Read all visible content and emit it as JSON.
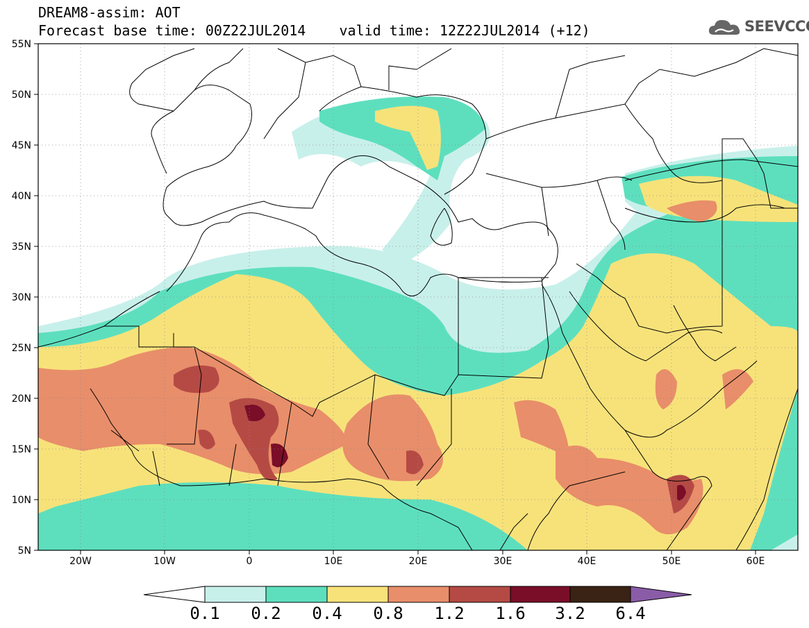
{
  "title": {
    "line1": "DREAM8-assim: AOT",
    "line2_base": "Forecast base time: 00Z22JUL2014",
    "line2_valid": "valid time: 12Z22JUL2014 (+12)"
  },
  "logo": {
    "text": "SEEVCCC",
    "icon": "cloud-icon"
  },
  "map": {
    "projection": "lat-lon",
    "lon_range": [
      -25,
      65
    ],
    "lat_range": [
      5,
      55
    ],
    "lat_labels": [
      "55N",
      "50N",
      "45N",
      "40N",
      "35N",
      "30N",
      "25N",
      "20N",
      "15N",
      "10N",
      "5N"
    ],
    "lon_labels": [
      "20W",
      "10W",
      "0",
      "10E",
      "20E",
      "30E",
      "40E",
      "50E",
      "60E"
    ],
    "grid": "dotted"
  },
  "colorbar": {
    "labels": [
      "0.1",
      "0.2",
      "0.4",
      "0.8",
      "1.2",
      "1.6",
      "3.2",
      "6.4"
    ],
    "colors": [
      "#ffffff",
      "#c8f0ea",
      "#5ddfbe",
      "#f7e27a",
      "#e88e6a",
      "#b54a45",
      "#7a0d28",
      "#3a2214",
      "#8a5ca8"
    ]
  },
  "legend_colors": {
    "c1": "#c8f0ea",
    "c2": "#5ddfbe",
    "c3": "#f7e27a",
    "c4": "#e88e6a",
    "c5": "#b54a45",
    "c6": "#7a0d28"
  }
}
